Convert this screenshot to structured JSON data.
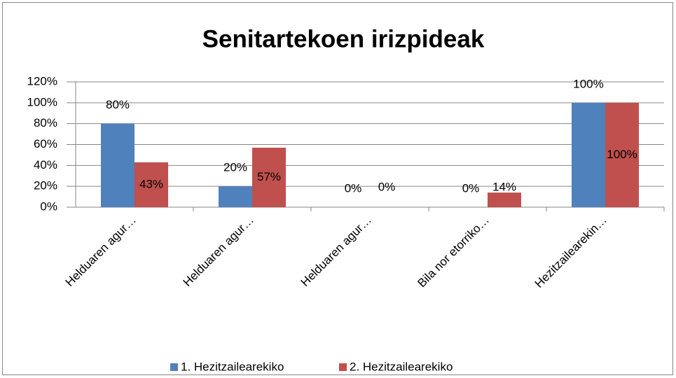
{
  "chart_data": {
    "type": "bar",
    "title": "Senitartekoen irizpideak",
    "categories": [
      "Helduaren agur…",
      "Helduaren agur…",
      "Helduaren agur…",
      "Bila nor etorriko…",
      "Hezitzailearekin…"
    ],
    "series": [
      {
        "name": "1. Hezitzailearekiko",
        "color": "#4f81bd",
        "values": [
          80,
          20,
          0,
          0,
          100
        ],
        "value_labels": [
          "80%",
          "20%",
          "0%",
          "0%",
          "100%"
        ]
      },
      {
        "name": "2. Hezitzailearekiko",
        "color": "#c0504d",
        "values": [
          43,
          57,
          0,
          14,
          100
        ],
        "value_labels": [
          "43%",
          "57%",
          "0%",
          "14%",
          "100%"
        ]
      }
    ],
    "ylim": [
      0,
      120
    ],
    "yticks": [
      {
        "value": 0,
        "label": "0%"
      },
      {
        "value": 20,
        "label": "20%"
      },
      {
        "value": 40,
        "label": "40%"
      },
      {
        "value": 60,
        "label": "60%"
      },
      {
        "value": 80,
        "label": "80%"
      },
      {
        "value": 100,
        "label": "100%"
      },
      {
        "value": 120,
        "label": "120%"
      }
    ],
    "grid": true,
    "legend": "bottom"
  }
}
